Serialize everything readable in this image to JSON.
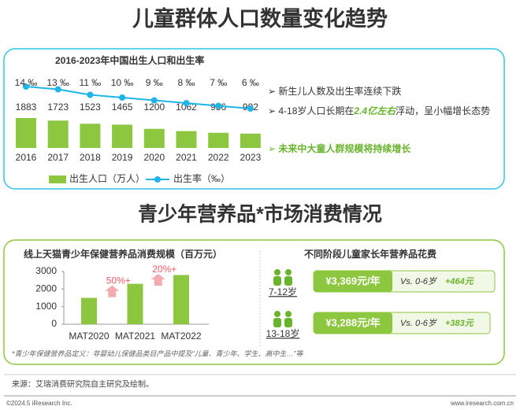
{
  "header": {
    "title": "儿童群体人口数量变化趋势"
  },
  "chart_data": [
    {
      "type": "combo",
      "title": "2016-2023年中国出生人口和出生率",
      "categories": [
        "2016",
        "2017",
        "2018",
        "2019",
        "2020",
        "2021",
        "2022",
        "2023"
      ],
      "series": [
        {
          "name": "出生人口（万人）",
          "type": "bar",
          "color": "#8dc63f",
          "values": [
            1883,
            1723,
            1523,
            1465,
            1200,
            1062,
            956,
            902
          ]
        },
        {
          "name": "出生率（‰）",
          "type": "line",
          "axis": "y2",
          "color": "#1fb5e8",
          "values": [
            14,
            13,
            11,
            10,
            9,
            8,
            7,
            6
          ],
          "value_labels": [
            "14 ‰",
            "13 ‰",
            "11 ‰",
            "10 ‰",
            "9 ‰",
            "8 ‰",
            "7 ‰",
            "6 ‰"
          ]
        }
      ]
    },
    {
      "type": "bar",
      "title": "线上天猫青少年保健营养品消费规模（百万元）",
      "categories": [
        "MAT2020",
        "MAT2021",
        "MAT2022"
      ],
      "values": [
        1500,
        2300,
        2800
      ],
      "color": "#8dc63f",
      "ylim": [
        0,
        3000
      ],
      "yticks": [
        0,
        1000,
        2000,
        3000
      ],
      "annotations": [
        "50%+",
        "20%+"
      ]
    }
  ],
  "bullets": [
    {
      "parts": [
        "新生儿人数及出生率连续下跌"
      ]
    },
    {
      "parts": [
        "4-18岁人口长期在",
        "2.4亿左右",
        "浮动，呈小幅增长态势"
      ]
    },
    {
      "parts": [
        "未来中大童人群规模将持续增长"
      ]
    }
  ],
  "section2": {
    "title": "青少年营养品*市场消费情况"
  },
  "spending": {
    "title": "不同阶段儿童家长年营养品花费",
    "rows": [
      {
        "group": "7-12岁",
        "amount": "¥3,369元/年",
        "compare": "Vs. 0-6岁",
        "delta": "+464元"
      },
      {
        "group": "13-18岁",
        "amount": "¥3,288元/年",
        "compare": "Vs. 0-6岁",
        "delta": "+383元"
      }
    ]
  },
  "footnote": "*青少年保健营养品定义：非婴幼儿保健品类目产品中提及“儿童、青少年、学生、高中生…”等",
  "source": "来源：艾瑞消费研究院自主研究及绘制。",
  "copyright": "©2024.5 iResearch Inc.",
  "url": "www.iresearch.com.cn"
}
